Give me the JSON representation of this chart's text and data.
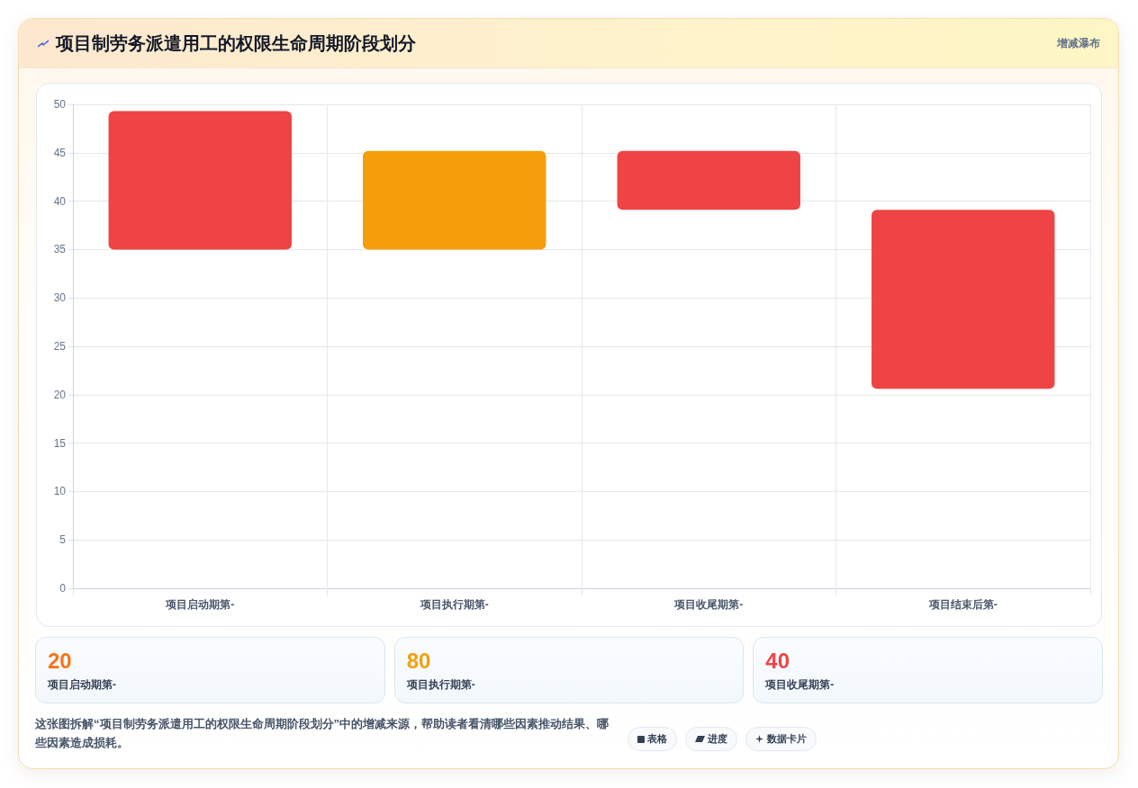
{
  "chart_data": [
    {
      "type": "bar",
      "title": "项目制劳务派遣用工的权限生命周期阶段划分",
      "subtitle": "增减瀑布",
      "categories": [
        "项目启动期第-",
        "项目执行期第-",
        "项目收尾期第-",
        "项目结束后第-"
      ],
      "base": [
        35,
        35,
        39.1,
        20.6
      ],
      "values": [
        14.3,
        10.2,
        6.1,
        18.5
      ],
      "colors": [
        "#ef4444",
        "#f59e0b",
        "#ef4444",
        "#ef4444"
      ],
      "ylim": [
        0,
        50
      ],
      "yticks": [
        0,
        5,
        10,
        15,
        20,
        25,
        30,
        35,
        40,
        45,
        50
      ],
      "grid": true,
      "annotations": [
        "这张图拆解“项目制劳务派遣用工的权限生命周期阶段划分”中的增减来源，帮助读者看清哪些因素推动结果、哪些因素造成损耗。",
        "表格",
        "进度",
        "数据卡片"
      ]
    },
    {
      "type": "other",
      "categories": [
        "项目启动期第-",
        "项目执行期第-",
        "项目收尾期第-"
      ],
      "values": [
        20,
        80,
        40
      ],
      "data_labels": true
    }
  ]
}
